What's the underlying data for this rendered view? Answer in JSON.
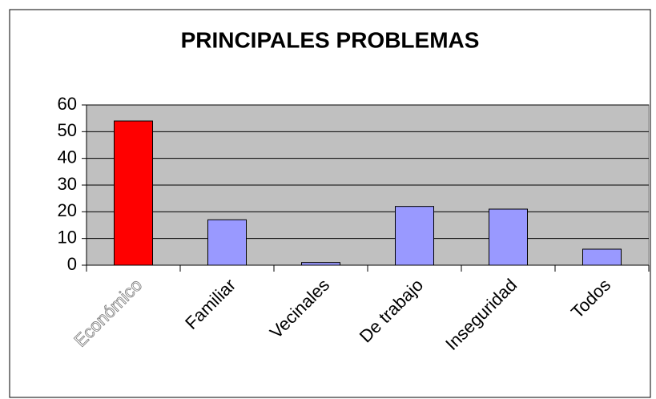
{
  "chart_data": {
    "type": "bar",
    "title": "PRINCIPALES PROBLEMAS",
    "categories": [
      "Económico",
      "Familiar",
      "Vecinales",
      "De trabajo",
      "Inseguridad",
      "Todos"
    ],
    "values": [
      54,
      17,
      1,
      22,
      21,
      6
    ],
    "colors": [
      "#ff0000",
      "#9999ff",
      "#9999ff",
      "#9999ff",
      "#9999ff",
      "#9999ff"
    ],
    "ylim": [
      0,
      60
    ],
    "yticks": [
      0,
      10,
      20,
      30,
      40,
      50,
      60
    ],
    "grid": true
  }
}
